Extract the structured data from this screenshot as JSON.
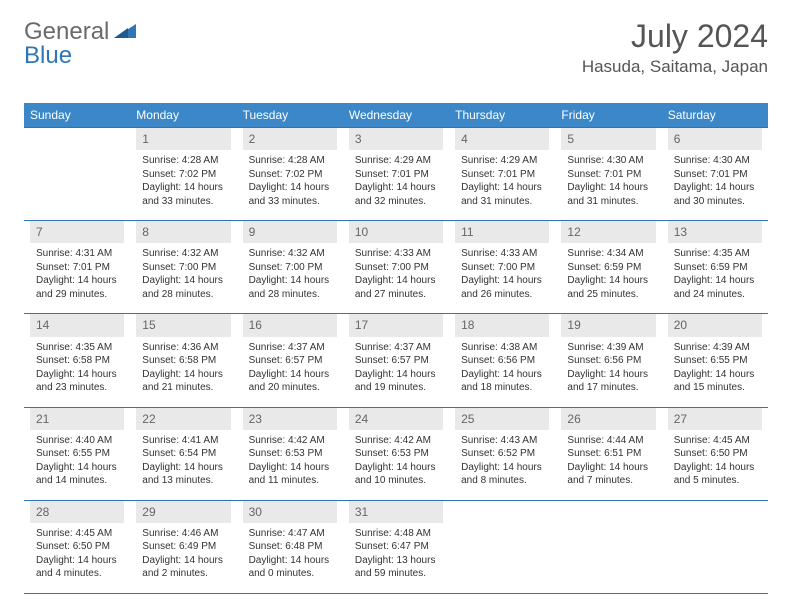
{
  "logo": {
    "part1": "General",
    "part2": "Blue"
  },
  "title": "July 2024",
  "location": "Hasuda, Saitama, Japan",
  "colors": {
    "header_bg": "#3b87c8",
    "header_text": "#ffffff",
    "border": "#2f76b8",
    "daynum_bg": "#e9e9e9",
    "daynum_text": "#666666",
    "body_text": "#333333",
    "logo_gray": "#6a6a6a",
    "logo_blue": "#2f76b8"
  },
  "weekdays": [
    "Sunday",
    "Monday",
    "Tuesday",
    "Wednesday",
    "Thursday",
    "Friday",
    "Saturday"
  ],
  "start_offset": 1,
  "days": [
    {
      "n": 1,
      "sunrise": "4:28 AM",
      "sunset": "7:02 PM",
      "daylight": "14 hours and 33 minutes."
    },
    {
      "n": 2,
      "sunrise": "4:28 AM",
      "sunset": "7:02 PM",
      "daylight": "14 hours and 33 minutes."
    },
    {
      "n": 3,
      "sunrise": "4:29 AM",
      "sunset": "7:01 PM",
      "daylight": "14 hours and 32 minutes."
    },
    {
      "n": 4,
      "sunrise": "4:29 AM",
      "sunset": "7:01 PM",
      "daylight": "14 hours and 31 minutes."
    },
    {
      "n": 5,
      "sunrise": "4:30 AM",
      "sunset": "7:01 PM",
      "daylight": "14 hours and 31 minutes."
    },
    {
      "n": 6,
      "sunrise": "4:30 AM",
      "sunset": "7:01 PM",
      "daylight": "14 hours and 30 minutes."
    },
    {
      "n": 7,
      "sunrise": "4:31 AM",
      "sunset": "7:01 PM",
      "daylight": "14 hours and 29 minutes."
    },
    {
      "n": 8,
      "sunrise": "4:32 AM",
      "sunset": "7:00 PM",
      "daylight": "14 hours and 28 minutes."
    },
    {
      "n": 9,
      "sunrise": "4:32 AM",
      "sunset": "7:00 PM",
      "daylight": "14 hours and 28 minutes."
    },
    {
      "n": 10,
      "sunrise": "4:33 AM",
      "sunset": "7:00 PM",
      "daylight": "14 hours and 27 minutes."
    },
    {
      "n": 11,
      "sunrise": "4:33 AM",
      "sunset": "7:00 PM",
      "daylight": "14 hours and 26 minutes."
    },
    {
      "n": 12,
      "sunrise": "4:34 AM",
      "sunset": "6:59 PM",
      "daylight": "14 hours and 25 minutes."
    },
    {
      "n": 13,
      "sunrise": "4:35 AM",
      "sunset": "6:59 PM",
      "daylight": "14 hours and 24 minutes."
    },
    {
      "n": 14,
      "sunrise": "4:35 AM",
      "sunset": "6:58 PM",
      "daylight": "14 hours and 23 minutes."
    },
    {
      "n": 15,
      "sunrise": "4:36 AM",
      "sunset": "6:58 PM",
      "daylight": "14 hours and 21 minutes."
    },
    {
      "n": 16,
      "sunrise": "4:37 AM",
      "sunset": "6:57 PM",
      "daylight": "14 hours and 20 minutes."
    },
    {
      "n": 17,
      "sunrise": "4:37 AM",
      "sunset": "6:57 PM",
      "daylight": "14 hours and 19 minutes."
    },
    {
      "n": 18,
      "sunrise": "4:38 AM",
      "sunset": "6:56 PM",
      "daylight": "14 hours and 18 minutes."
    },
    {
      "n": 19,
      "sunrise": "4:39 AM",
      "sunset": "6:56 PM",
      "daylight": "14 hours and 17 minutes."
    },
    {
      "n": 20,
      "sunrise": "4:39 AM",
      "sunset": "6:55 PM",
      "daylight": "14 hours and 15 minutes."
    },
    {
      "n": 21,
      "sunrise": "4:40 AM",
      "sunset": "6:55 PM",
      "daylight": "14 hours and 14 minutes."
    },
    {
      "n": 22,
      "sunrise": "4:41 AM",
      "sunset": "6:54 PM",
      "daylight": "14 hours and 13 minutes."
    },
    {
      "n": 23,
      "sunrise": "4:42 AM",
      "sunset": "6:53 PM",
      "daylight": "14 hours and 11 minutes."
    },
    {
      "n": 24,
      "sunrise": "4:42 AM",
      "sunset": "6:53 PM",
      "daylight": "14 hours and 10 minutes."
    },
    {
      "n": 25,
      "sunrise": "4:43 AM",
      "sunset": "6:52 PM",
      "daylight": "14 hours and 8 minutes."
    },
    {
      "n": 26,
      "sunrise": "4:44 AM",
      "sunset": "6:51 PM",
      "daylight": "14 hours and 7 minutes."
    },
    {
      "n": 27,
      "sunrise": "4:45 AM",
      "sunset": "6:50 PM",
      "daylight": "14 hours and 5 minutes."
    },
    {
      "n": 28,
      "sunrise": "4:45 AM",
      "sunset": "6:50 PM",
      "daylight": "14 hours and 4 minutes."
    },
    {
      "n": 29,
      "sunrise": "4:46 AM",
      "sunset": "6:49 PM",
      "daylight": "14 hours and 2 minutes."
    },
    {
      "n": 30,
      "sunrise": "4:47 AM",
      "sunset": "6:48 PM",
      "daylight": "14 hours and 0 minutes."
    },
    {
      "n": 31,
      "sunrise": "4:48 AM",
      "sunset": "6:47 PM",
      "daylight": "13 hours and 59 minutes."
    }
  ],
  "labels": {
    "sunrise": "Sunrise:",
    "sunset": "Sunset:",
    "daylight": "Daylight:"
  }
}
